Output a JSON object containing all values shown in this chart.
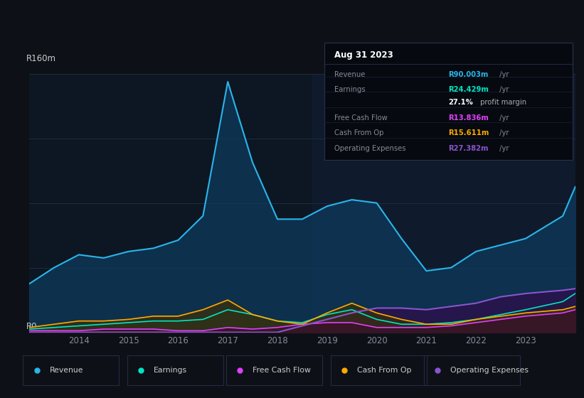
{
  "bg_color": "#0d1117",
  "plot_bg": "#0d1623",
  "grid_color": "#1e2d3d",
  "years": [
    2013.0,
    2013.5,
    2014.0,
    2014.5,
    2015.0,
    2015.5,
    2016.0,
    2016.5,
    2017.0,
    2017.5,
    2018.0,
    2018.5,
    2019.0,
    2019.5,
    2020.0,
    2020.5,
    2021.0,
    2021.5,
    2022.0,
    2022.5,
    2023.0,
    2023.75,
    2024.0
  ],
  "revenue": [
    30,
    40,
    48,
    46,
    50,
    52,
    57,
    72,
    155,
    105,
    70,
    70,
    78,
    82,
    80,
    58,
    38,
    40,
    50,
    54,
    58,
    72,
    90
  ],
  "earnings": [
    2,
    3,
    4,
    5,
    6,
    7,
    7,
    8,
    14,
    11,
    7,
    6,
    11,
    14,
    8,
    5,
    5,
    6,
    8,
    11,
    14,
    19,
    24
  ],
  "fcf": [
    1,
    1,
    1,
    2,
    2,
    2,
    1,
    1,
    3,
    2,
    3,
    5,
    6,
    6,
    3,
    3,
    3,
    4,
    6,
    8,
    10,
    12,
    14
  ],
  "cash_from_op": [
    3,
    5,
    7,
    7,
    8,
    10,
    10,
    14,
    20,
    11,
    7,
    5,
    12,
    18,
    12,
    8,
    5,
    5,
    8,
    10,
    12,
    14,
    16
  ],
  "op_expenses": [
    0,
    0,
    0,
    0,
    0,
    0,
    0,
    0,
    0,
    0,
    0,
    4,
    8,
    12,
    15,
    15,
    14,
    16,
    18,
    22,
    24,
    26,
    27
  ],
  "revenue_color": "#29b5e8",
  "earnings_color": "#00e5c3",
  "fcf_color": "#e040fb",
  "cash_from_op_color": "#ffaa00",
  "op_expenses_color": "#8855cc",
  "revenue_fill_color": "#0d3a5c",
  "earnings_fill_color": "#0d3a30",
  "fcf_fill_color": "#3a0d2e",
  "cash_from_op_fill_color": "#3a2e0d",
  "op_expenses_fill_color": "#2e0d4a",
  "ylabel_text": "R160m",
  "y0_text": "R0",
  "xticks": [
    2014,
    2015,
    2016,
    2017,
    2018,
    2019,
    2020,
    2021,
    2022,
    2023
  ],
  "ymax": 160,
  "info_box": {
    "date": "Aug 31 2023",
    "rows": [
      {
        "label": "Revenue",
        "val": "R90.003m",
        "val_color": "#29b5e8",
        "suffix": " /yr",
        "bold": true
      },
      {
        "label": "Earnings",
        "val": "R24.429m",
        "val_color": "#00e5c3",
        "suffix": " /yr",
        "bold": true
      },
      {
        "label": "",
        "val": "27.1%",
        "val_color": "#ffffff",
        "suffix": " profit margin",
        "bold": true
      },
      {
        "label": "Free Cash Flow",
        "val": "R13.836m",
        "val_color": "#e040fb",
        "suffix": " /yr",
        "bold": true
      },
      {
        "label": "Cash From Op",
        "val": "R15.611m",
        "val_color": "#ffaa00",
        "suffix": " /yr",
        "bold": true
      },
      {
        "label": "Operating Expenses",
        "val": "R27.382m",
        "val_color": "#8855cc",
        "suffix": " /yr",
        "bold": true
      }
    ]
  },
  "legend_items": [
    {
      "label": "Revenue",
      "color": "#29b5e8"
    },
    {
      "label": "Earnings",
      "color": "#00e5c3"
    },
    {
      "label": "Free Cash Flow",
      "color": "#e040fb"
    },
    {
      "label": "Cash From Op",
      "color": "#ffaa00"
    },
    {
      "label": "Operating Expenses",
      "color": "#8855cc"
    }
  ]
}
